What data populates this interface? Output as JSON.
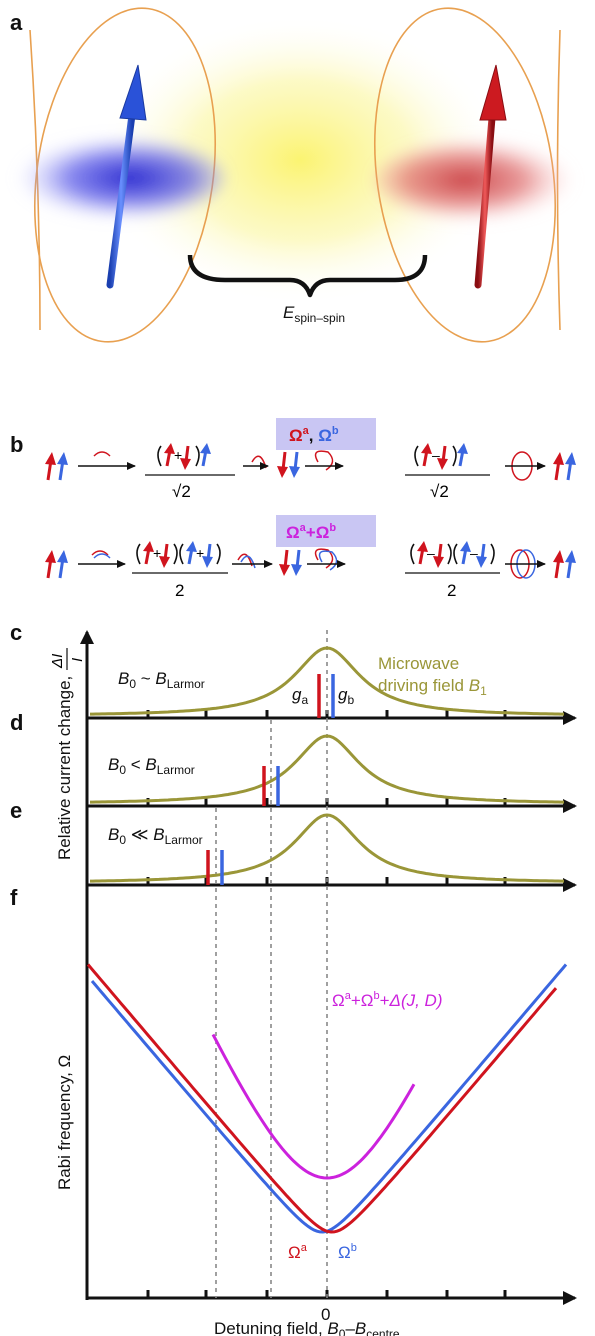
{
  "panels": {
    "a": {
      "label": "a",
      "energy_var": "E",
      "energy_sub": "spin–spin"
    },
    "b": {
      "label": "b",
      "row1_box_a": "Ω",
      "row1_box_a_sup": "a",
      "row1_box_sep": ", ",
      "row1_box_b": "Ω",
      "row1_box_b_sup": "b",
      "row2_box_a": "Ω",
      "row2_box_a_sup": "a",
      "row2_box_plus": "+",
      "row2_box_b": "Ω",
      "row2_box_b_sup": "b",
      "sqrt2": "√2",
      "two": "2",
      "plus": "+",
      "minus": "–"
    },
    "c": {
      "label": "c",
      "cond_var": "B",
      "cond_sub0": "0",
      "cond_rel": " ~ ",
      "cond_var2": "B",
      "cond_sub2": "Larmor",
      "mw_line1": "Microwave",
      "mw_line2": "driving field ",
      "mw_var": "B",
      "mw_sub": "1",
      "ga": "g",
      "ga_sub": "a",
      "gb": "g",
      "gb_sub": "b"
    },
    "d": {
      "label": "d",
      "cond_var": "B",
      "cond_sub0": "0",
      "cond_rel": " < ",
      "cond_var2": "B",
      "cond_sub2": "Larmor"
    },
    "e": {
      "label": "e",
      "cond_var": "B",
      "cond_sub0": "0",
      "cond_rel": " ≪ ",
      "cond_var2": "B",
      "cond_sub2": "Larmor"
    },
    "f": {
      "label": "f",
      "magenta_label": "Ω",
      "magenta_sup_a": "a",
      "magenta_plus1": "+Ω",
      "magenta_sup_b": "b",
      "magenta_plus2": "+",
      "magenta_delta": "Δ",
      "magenta_args": "(J, D)",
      "omega_a": "Ω",
      "omega_a_sup": "a",
      "omega_b": "Ω",
      "omega_b_sup": "b"
    }
  },
  "axes": {
    "ylabel_cde_text": "Relative current change, ",
    "ylabel_frac_num": "ΔI",
    "ylabel_frac_den": "I",
    "ylabel_f": "Rabi frequency, Ω",
    "xlabel_prefix": "Detuning field, ",
    "xlabel_var1": "B",
    "xlabel_sub1": "0",
    "xlabel_dash": "–",
    "xlabel_var2": "B",
    "xlabel_sub2": "centre",
    "xtick_zero": "0"
  },
  "colors": {
    "red": "#d0141e",
    "blue": "#3a66e0",
    "olive": "#9a9638",
    "magenta": "#cc22dd",
    "yellow": "#f7f27a",
    "orange": "#e8a050",
    "box": "#c9c6f3",
    "grey": "#888888"
  },
  "chart_data": {
    "type": "line",
    "resonance_center_x": 0,
    "panels_cde_markers": [
      {
        "panel": "c",
        "condition": "B0 ~ BLarmor",
        "ga_position": "at resonance centre",
        "gb_position": "at resonance centre"
      },
      {
        "panel": "d",
        "condition": "B0 < BLarmor",
        "ga_position": "left of centre",
        "gb_position": "left of centre"
      },
      {
        "panel": "e",
        "condition": "B0 ≪ BLarmor",
        "ga_position": "far left of centre",
        "gb_position": "far left of centre"
      }
    ],
    "series": [
      {
        "name": "Microwave driving field B1",
        "shape": "Lorentzian peak at 0"
      },
      {
        "name": "Ωa",
        "shape": "V-shaped minimum near 0"
      },
      {
        "name": "Ωb",
        "shape": "V-shaped minimum near 0"
      },
      {
        "name": "Ωa+Ωb+Δ(J, D)",
        "shape": "U-shaped minimum at 0"
      }
    ]
  }
}
